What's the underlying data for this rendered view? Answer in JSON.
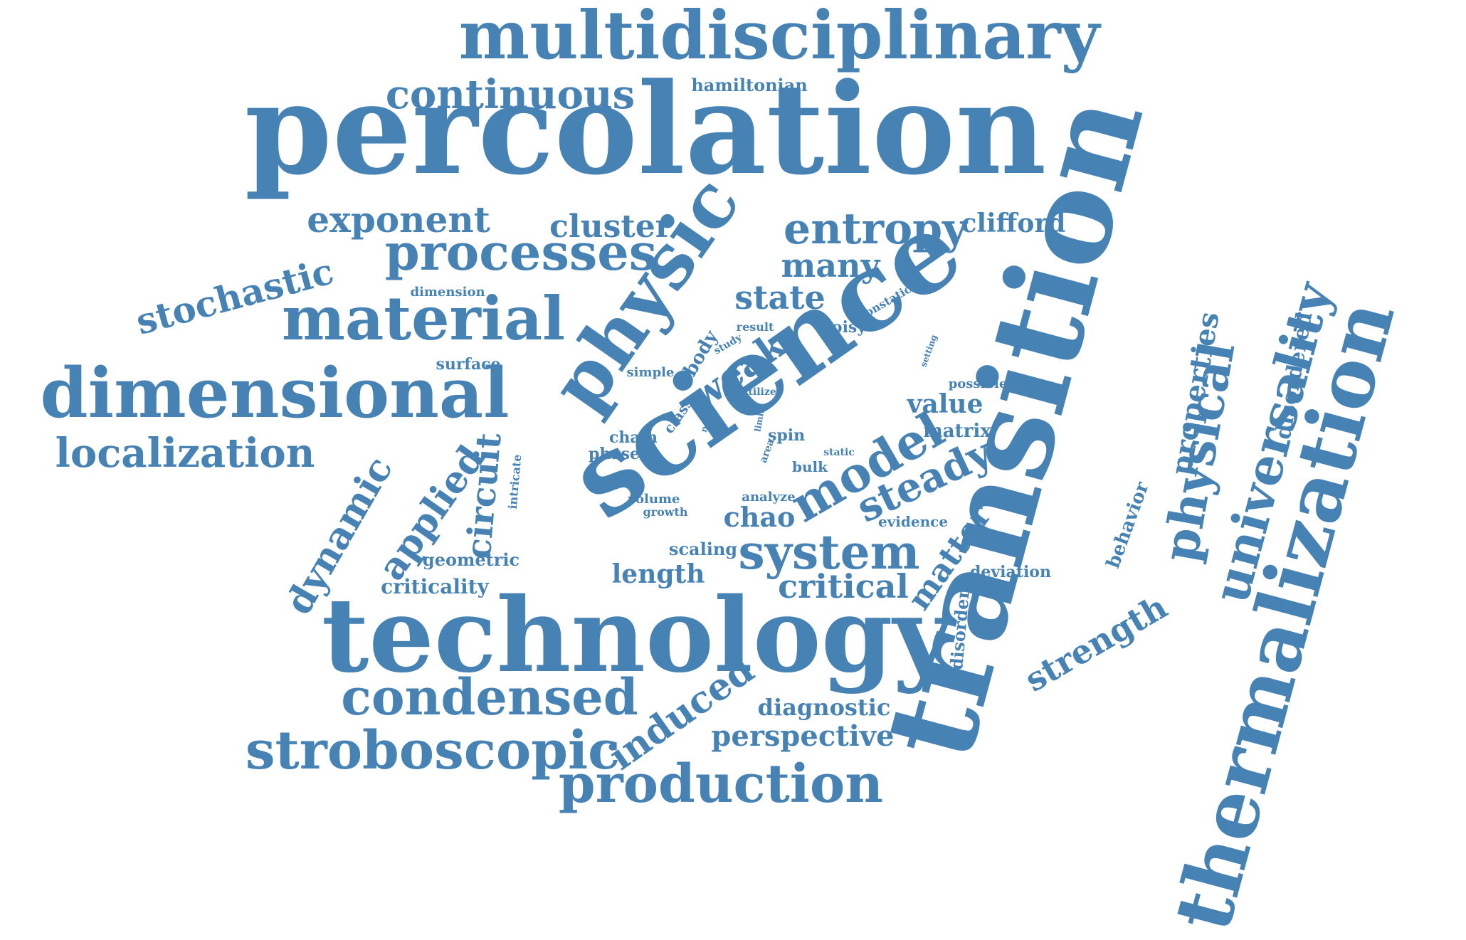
{
  "color": "#4682b4",
  "words": [
    {
      "text": "multidisciplinary"
    },
    {
      "text": "percolation"
    },
    {
      "text": "continuous"
    },
    {
      "text": "hamiltonian"
    },
    {
      "text": "transition"
    },
    {
      "text": "science"
    },
    {
      "text": "physic"
    },
    {
      "text": "exponent"
    },
    {
      "text": "cluster"
    },
    {
      "text": "entropy"
    },
    {
      "text": "clifford"
    },
    {
      "text": "stochastic"
    },
    {
      "text": "processes"
    },
    {
      "text": "many"
    },
    {
      "text": "material"
    },
    {
      "text": "dimension"
    },
    {
      "text": "state"
    },
    {
      "text": "nonstatic"
    },
    {
      "text": "result"
    },
    {
      "text": "noisy"
    },
    {
      "text": "setting"
    },
    {
      "text": "study"
    },
    {
      "text": "surface"
    },
    {
      "text": "body"
    },
    {
      "text": "weak"
    },
    {
      "text": "simple"
    },
    {
      "text": "utilize"
    },
    {
      "text": "possible"
    },
    {
      "text": "dimensional"
    },
    {
      "text": "class"
    },
    {
      "text": "noise"
    },
    {
      "text": "limit"
    },
    {
      "text": "value"
    },
    {
      "text": "localization"
    },
    {
      "text": "chain"
    },
    {
      "text": "spin"
    },
    {
      "text": "matrix"
    },
    {
      "text": "phase"
    },
    {
      "text": "area"
    },
    {
      "text": "static"
    },
    {
      "text": "bulk"
    },
    {
      "text": "intricate"
    },
    {
      "text": "circuit"
    },
    {
      "text": "model"
    },
    {
      "text": "steady"
    },
    {
      "text": "applied"
    },
    {
      "text": "volume"
    },
    {
      "text": "analyze"
    },
    {
      "text": "growth"
    },
    {
      "text": "chao"
    },
    {
      "text": "evidence"
    },
    {
      "text": "dynamic"
    },
    {
      "text": "scaling"
    },
    {
      "text": "system"
    },
    {
      "text": "geometric"
    },
    {
      "text": "length"
    },
    {
      "text": "critical"
    },
    {
      "text": "criticality"
    },
    {
      "text": "matter"
    },
    {
      "text": "deviation"
    },
    {
      "text": "disorder"
    },
    {
      "text": "technology"
    },
    {
      "text": "condensed"
    },
    {
      "text": "induced"
    },
    {
      "text": "diagnostic"
    },
    {
      "text": "stroboscopic"
    },
    {
      "text": "perspective"
    },
    {
      "text": "production"
    },
    {
      "text": "physical"
    },
    {
      "text": "properties"
    },
    {
      "text": "behavior"
    },
    {
      "text": "strength"
    },
    {
      "text": "universality"
    },
    {
      "text": "disordered"
    },
    {
      "text": "thermalization"
    }
  ]
}
